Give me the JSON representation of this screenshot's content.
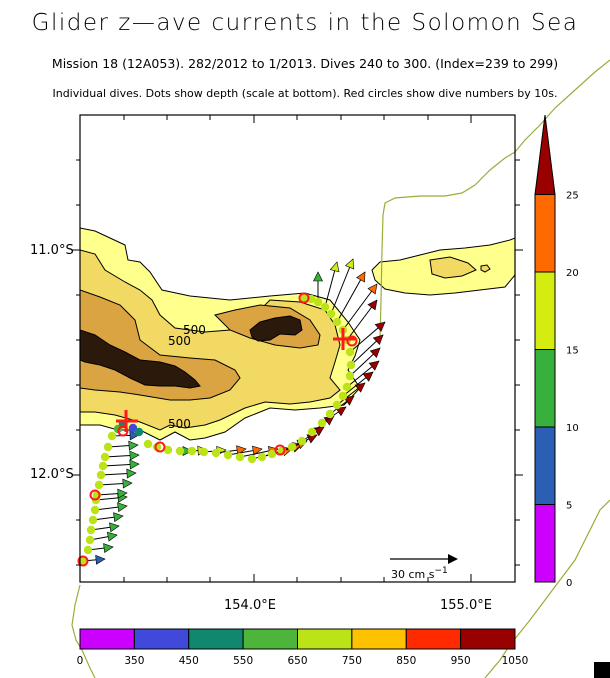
{
  "title": "Glider z—ave currents in the Solomon Sea",
  "subtitle": "Mission 18 (12A053). 282/2012 to 1/2013. Dives 240 to 300. (Index=239 to 299)",
  "caption": "Individual dives. Dots show depth (scale at bottom). Red circles show dive numbers by 10s.",
  "axes": {
    "lat_labels": [
      "11.0°S",
      "12.0°S"
    ],
    "lon_labels": [
      "154.0°E",
      "155.0°E"
    ]
  },
  "contour_label": "500",
  "scale_arrow": {
    "label": "30 cm s",
    "superscript": "−1"
  },
  "speed_colorbar": {
    "ticks": [
      "0",
      "5",
      "10",
      "15",
      "20",
      "25"
    ],
    "colors": [
      "#cc00ff",
      "#2b5fb3",
      "#38b03c",
      "#d4ec0f",
      "#ff6a00",
      "#990000"
    ]
  },
  "depth_colorbar": {
    "ticks": [
      "0",
      "350",
      "450",
      "550",
      "650",
      "750",
      "850",
      "950",
      "1050"
    ],
    "colors": [
      "#cc00ff",
      "#4149db",
      "#118770",
      "#4db539",
      "#bce317",
      "#ffc200",
      "#ff2a00",
      "#990000"
    ]
  },
  "bathymetry_colors": [
    "#ffff8c",
    "#f2d964",
    "#d9a441",
    "#2b1a0c"
  ],
  "coast_color": "#9aad3c",
  "marker_color": "#ff1a1a"
}
